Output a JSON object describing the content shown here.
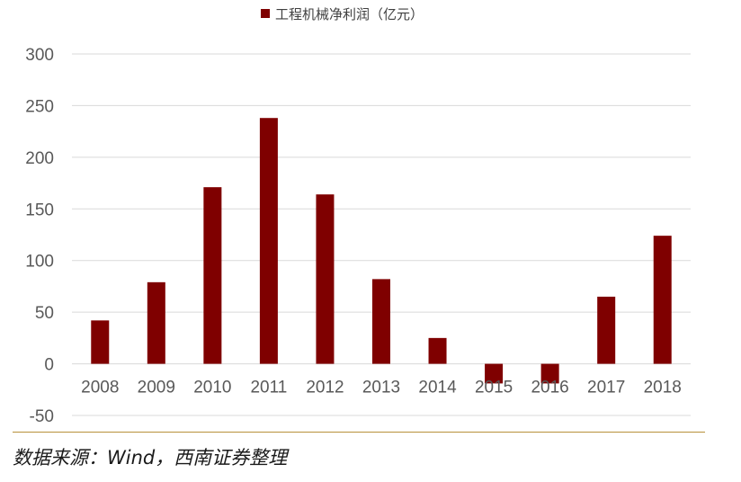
{
  "chart_data": {
    "type": "bar",
    "title": "",
    "xlabel": "",
    "ylabel": "",
    "categories": [
      "2008",
      "2009",
      "2010",
      "2011",
      "2012",
      "2013",
      "2014",
      "2015",
      "2016",
      "2017",
      "2018"
    ],
    "series": [
      {
        "name": "工程机械净利润（亿元）",
        "values": [
          42,
          79,
          171,
          238,
          164,
          82,
          25,
          -19,
          -19,
          65,
          124
        ]
      }
    ],
    "ylim": [
      -50,
      300
    ],
    "yticks": [
      "300",
      "250",
      "200",
      "150",
      "100",
      "50",
      "0",
      "-50"
    ],
    "grid": true,
    "legend": "top-center",
    "colors": {
      "bar": "#7f0000",
      "grid": "#d9d9d9"
    }
  },
  "source_text": "数据来源：Wind，西南证券整理"
}
